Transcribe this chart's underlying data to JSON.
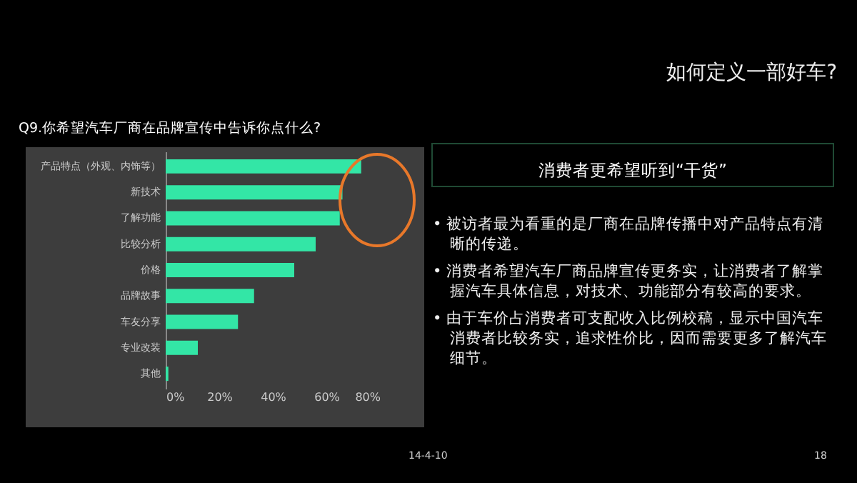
{
  "chart_data": {
    "type": "bar",
    "orientation": "horizontal",
    "title": "Q9.你希望汽车厂商在品牌宣传中告诉你点什么?",
    "categories": [
      "产品特点（外观、内饰等）",
      "新技术",
      "了解功能",
      "比较分析",
      "价格",
      "品牌故事",
      "车友分享",
      "专业改装",
      "其他"
    ],
    "values": [
      73,
      66,
      65,
      56,
      48,
      33,
      27,
      12,
      1
    ],
    "color": "#33e6a6",
    "xlim": [
      0,
      80
    ],
    "xticks": [
      {
        "value": 0,
        "label": "0%"
      },
      {
        "value": 20,
        "label": "20%"
      },
      {
        "value": 40,
        "label": "40%"
      },
      {
        "value": 60,
        "label": "60%"
      },
      {
        "value": 80,
        "label": "80%"
      }
    ],
    "grid": false,
    "annotations": [
      "如何定义一部好车?",
      "消费者更希望听到“干货”",
      "• 被访者最为看重的是厂商在品牌传播中对产品特点有清晰的传递。",
      "• 消费者希望汽车厂商品牌宣传更务实，让消费者了解掌握汽车具体信息，对技术、功能部分有较高的要求。",
      "• 由于车价占消费者可支配收入比例校稿，显示中国汽车消费者比较务实，追求性价比，因而需要更多了解汽车细节。",
      "14-4-10",
      "18"
    ]
  }
}
